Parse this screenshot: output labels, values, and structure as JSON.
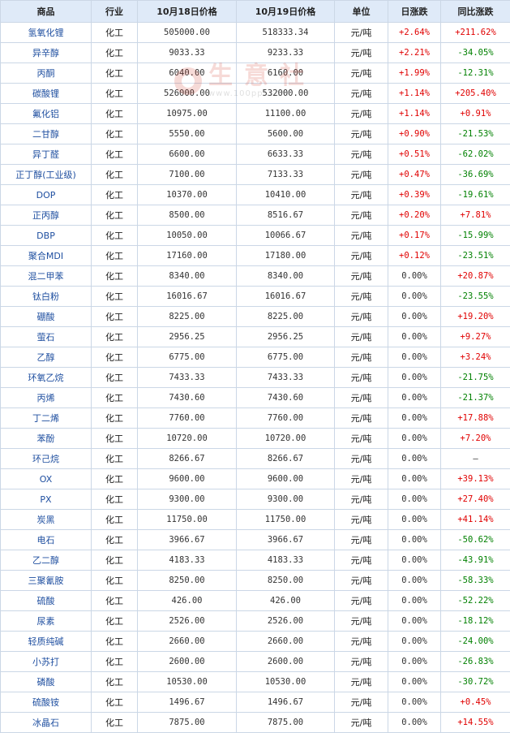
{
  "headers": [
    "商品",
    "行业",
    "10月18日价格",
    "10月19日价格",
    "单位",
    "日涨跌",
    "同比涨跌"
  ],
  "watermark": {
    "text": "生意社",
    "url": "www.100ppi.com"
  },
  "colors": {
    "up": "#e00000",
    "down": "#008000",
    "link": "#1f4fa0",
    "header_bg": "#dfeaf8",
    "border": "#cbd7e6"
  },
  "rows": [
    {
      "name": "氢氧化锂",
      "industry": "化工",
      "price1": "505000.00",
      "price2": "518333.34",
      "unit": "元/吨",
      "daily": "+2.64%",
      "yoy": "+211.62%"
    },
    {
      "name": "异辛醇",
      "industry": "化工",
      "price1": "9033.33",
      "price2": "9233.33",
      "unit": "元/吨",
      "daily": "+2.21%",
      "yoy": "-34.05%"
    },
    {
      "name": "丙酮",
      "industry": "化工",
      "price1": "6040.00",
      "price2": "6160.00",
      "unit": "元/吨",
      "daily": "+1.99%",
      "yoy": "-12.31%"
    },
    {
      "name": "碳酸锂",
      "industry": "化工",
      "price1": "526000.00",
      "price2": "532000.00",
      "unit": "元/吨",
      "daily": "+1.14%",
      "yoy": "+205.40%"
    },
    {
      "name": "氟化铝",
      "industry": "化工",
      "price1": "10975.00",
      "price2": "11100.00",
      "unit": "元/吨",
      "daily": "+1.14%",
      "yoy": "+0.91%"
    },
    {
      "name": "二甘醇",
      "industry": "化工",
      "price1": "5550.00",
      "price2": "5600.00",
      "unit": "元/吨",
      "daily": "+0.90%",
      "yoy": "-21.53%"
    },
    {
      "name": "异丁醛",
      "industry": "化工",
      "price1": "6600.00",
      "price2": "6633.33",
      "unit": "元/吨",
      "daily": "+0.51%",
      "yoy": "-62.02%"
    },
    {
      "name": "正丁醇(工业级)",
      "industry": "化工",
      "price1": "7100.00",
      "price2": "7133.33",
      "unit": "元/吨",
      "daily": "+0.47%",
      "yoy": "-36.69%"
    },
    {
      "name": "DOP",
      "industry": "化工",
      "price1": "10370.00",
      "price2": "10410.00",
      "unit": "元/吨",
      "daily": "+0.39%",
      "yoy": "-19.61%"
    },
    {
      "name": "正丙醇",
      "industry": "化工",
      "price1": "8500.00",
      "price2": "8516.67",
      "unit": "元/吨",
      "daily": "+0.20%",
      "yoy": "+7.81%"
    },
    {
      "name": "DBP",
      "industry": "化工",
      "price1": "10050.00",
      "price2": "10066.67",
      "unit": "元/吨",
      "daily": "+0.17%",
      "yoy": "-15.99%"
    },
    {
      "name": "聚合MDI",
      "industry": "化工",
      "price1": "17160.00",
      "price2": "17180.00",
      "unit": "元/吨",
      "daily": "+0.12%",
      "yoy": "-23.51%"
    },
    {
      "name": "混二甲苯",
      "industry": "化工",
      "price1": "8340.00",
      "price2": "8340.00",
      "unit": "元/吨",
      "daily": "0.00%",
      "yoy": "+20.87%"
    },
    {
      "name": "钛白粉",
      "industry": "化工",
      "price1": "16016.67",
      "price2": "16016.67",
      "unit": "元/吨",
      "daily": "0.00%",
      "yoy": "-23.55%"
    },
    {
      "name": "硼酸",
      "industry": "化工",
      "price1": "8225.00",
      "price2": "8225.00",
      "unit": "元/吨",
      "daily": "0.00%",
      "yoy": "+19.20%"
    },
    {
      "name": "萤石",
      "industry": "化工",
      "price1": "2956.25",
      "price2": "2956.25",
      "unit": "元/吨",
      "daily": "0.00%",
      "yoy": "+9.27%"
    },
    {
      "name": "乙醇",
      "industry": "化工",
      "price1": "6775.00",
      "price2": "6775.00",
      "unit": "元/吨",
      "daily": "0.00%",
      "yoy": "+3.24%"
    },
    {
      "name": "环氧乙烷",
      "industry": "化工",
      "price1": "7433.33",
      "price2": "7433.33",
      "unit": "元/吨",
      "daily": "0.00%",
      "yoy": "-21.75%"
    },
    {
      "name": "丙烯",
      "industry": "化工",
      "price1": "7430.60",
      "price2": "7430.60",
      "unit": "元/吨",
      "daily": "0.00%",
      "yoy": "-21.37%"
    },
    {
      "name": "丁二烯",
      "industry": "化工",
      "price1": "7760.00",
      "price2": "7760.00",
      "unit": "元/吨",
      "daily": "0.00%",
      "yoy": "+17.88%"
    },
    {
      "name": "苯酚",
      "industry": "化工",
      "price1": "10720.00",
      "price2": "10720.00",
      "unit": "元/吨",
      "daily": "0.00%",
      "yoy": "+7.20%"
    },
    {
      "name": "环己烷",
      "industry": "化工",
      "price1": "8266.67",
      "price2": "8266.67",
      "unit": "元/吨",
      "daily": "0.00%",
      "yoy": "—"
    },
    {
      "name": "OX",
      "industry": "化工",
      "price1": "9600.00",
      "price2": "9600.00",
      "unit": "元/吨",
      "daily": "0.00%",
      "yoy": "+39.13%"
    },
    {
      "name": "PX",
      "industry": "化工",
      "price1": "9300.00",
      "price2": "9300.00",
      "unit": "元/吨",
      "daily": "0.00%",
      "yoy": "+27.40%"
    },
    {
      "name": "炭黑",
      "industry": "化工",
      "price1": "11750.00",
      "price2": "11750.00",
      "unit": "元/吨",
      "daily": "0.00%",
      "yoy": "+41.14%"
    },
    {
      "name": "电石",
      "industry": "化工",
      "price1": "3966.67",
      "price2": "3966.67",
      "unit": "元/吨",
      "daily": "0.00%",
      "yoy": "-50.62%"
    },
    {
      "name": "乙二醇",
      "industry": "化工",
      "price1": "4183.33",
      "price2": "4183.33",
      "unit": "元/吨",
      "daily": "0.00%",
      "yoy": "-43.91%"
    },
    {
      "name": "三聚氰胺",
      "industry": "化工",
      "price1": "8250.00",
      "price2": "8250.00",
      "unit": "元/吨",
      "daily": "0.00%",
      "yoy": "-58.33%"
    },
    {
      "name": "硫酸",
      "industry": "化工",
      "price1": "426.00",
      "price2": "426.00",
      "unit": "元/吨",
      "daily": "0.00%",
      "yoy": "-52.22%"
    },
    {
      "name": "尿素",
      "industry": "化工",
      "price1": "2526.00",
      "price2": "2526.00",
      "unit": "元/吨",
      "daily": "0.00%",
      "yoy": "-18.12%"
    },
    {
      "name": "轻质纯碱",
      "industry": "化工",
      "price1": "2660.00",
      "price2": "2660.00",
      "unit": "元/吨",
      "daily": "0.00%",
      "yoy": "-24.00%"
    },
    {
      "name": "小苏打",
      "industry": "化工",
      "price1": "2600.00",
      "price2": "2600.00",
      "unit": "元/吨",
      "daily": "0.00%",
      "yoy": "-26.83%"
    },
    {
      "name": "磷酸",
      "industry": "化工",
      "price1": "10530.00",
      "price2": "10530.00",
      "unit": "元/吨",
      "daily": "0.00%",
      "yoy": "-30.72%"
    },
    {
      "name": "硫酸铵",
      "industry": "化工",
      "price1": "1496.67",
      "price2": "1496.67",
      "unit": "元/吨",
      "daily": "0.00%",
      "yoy": "+0.45%"
    },
    {
      "name": "冰晶石",
      "industry": "化工",
      "price1": "7875.00",
      "price2": "7875.00",
      "unit": "元/吨",
      "daily": "0.00%",
      "yoy": "+14.55%"
    }
  ]
}
